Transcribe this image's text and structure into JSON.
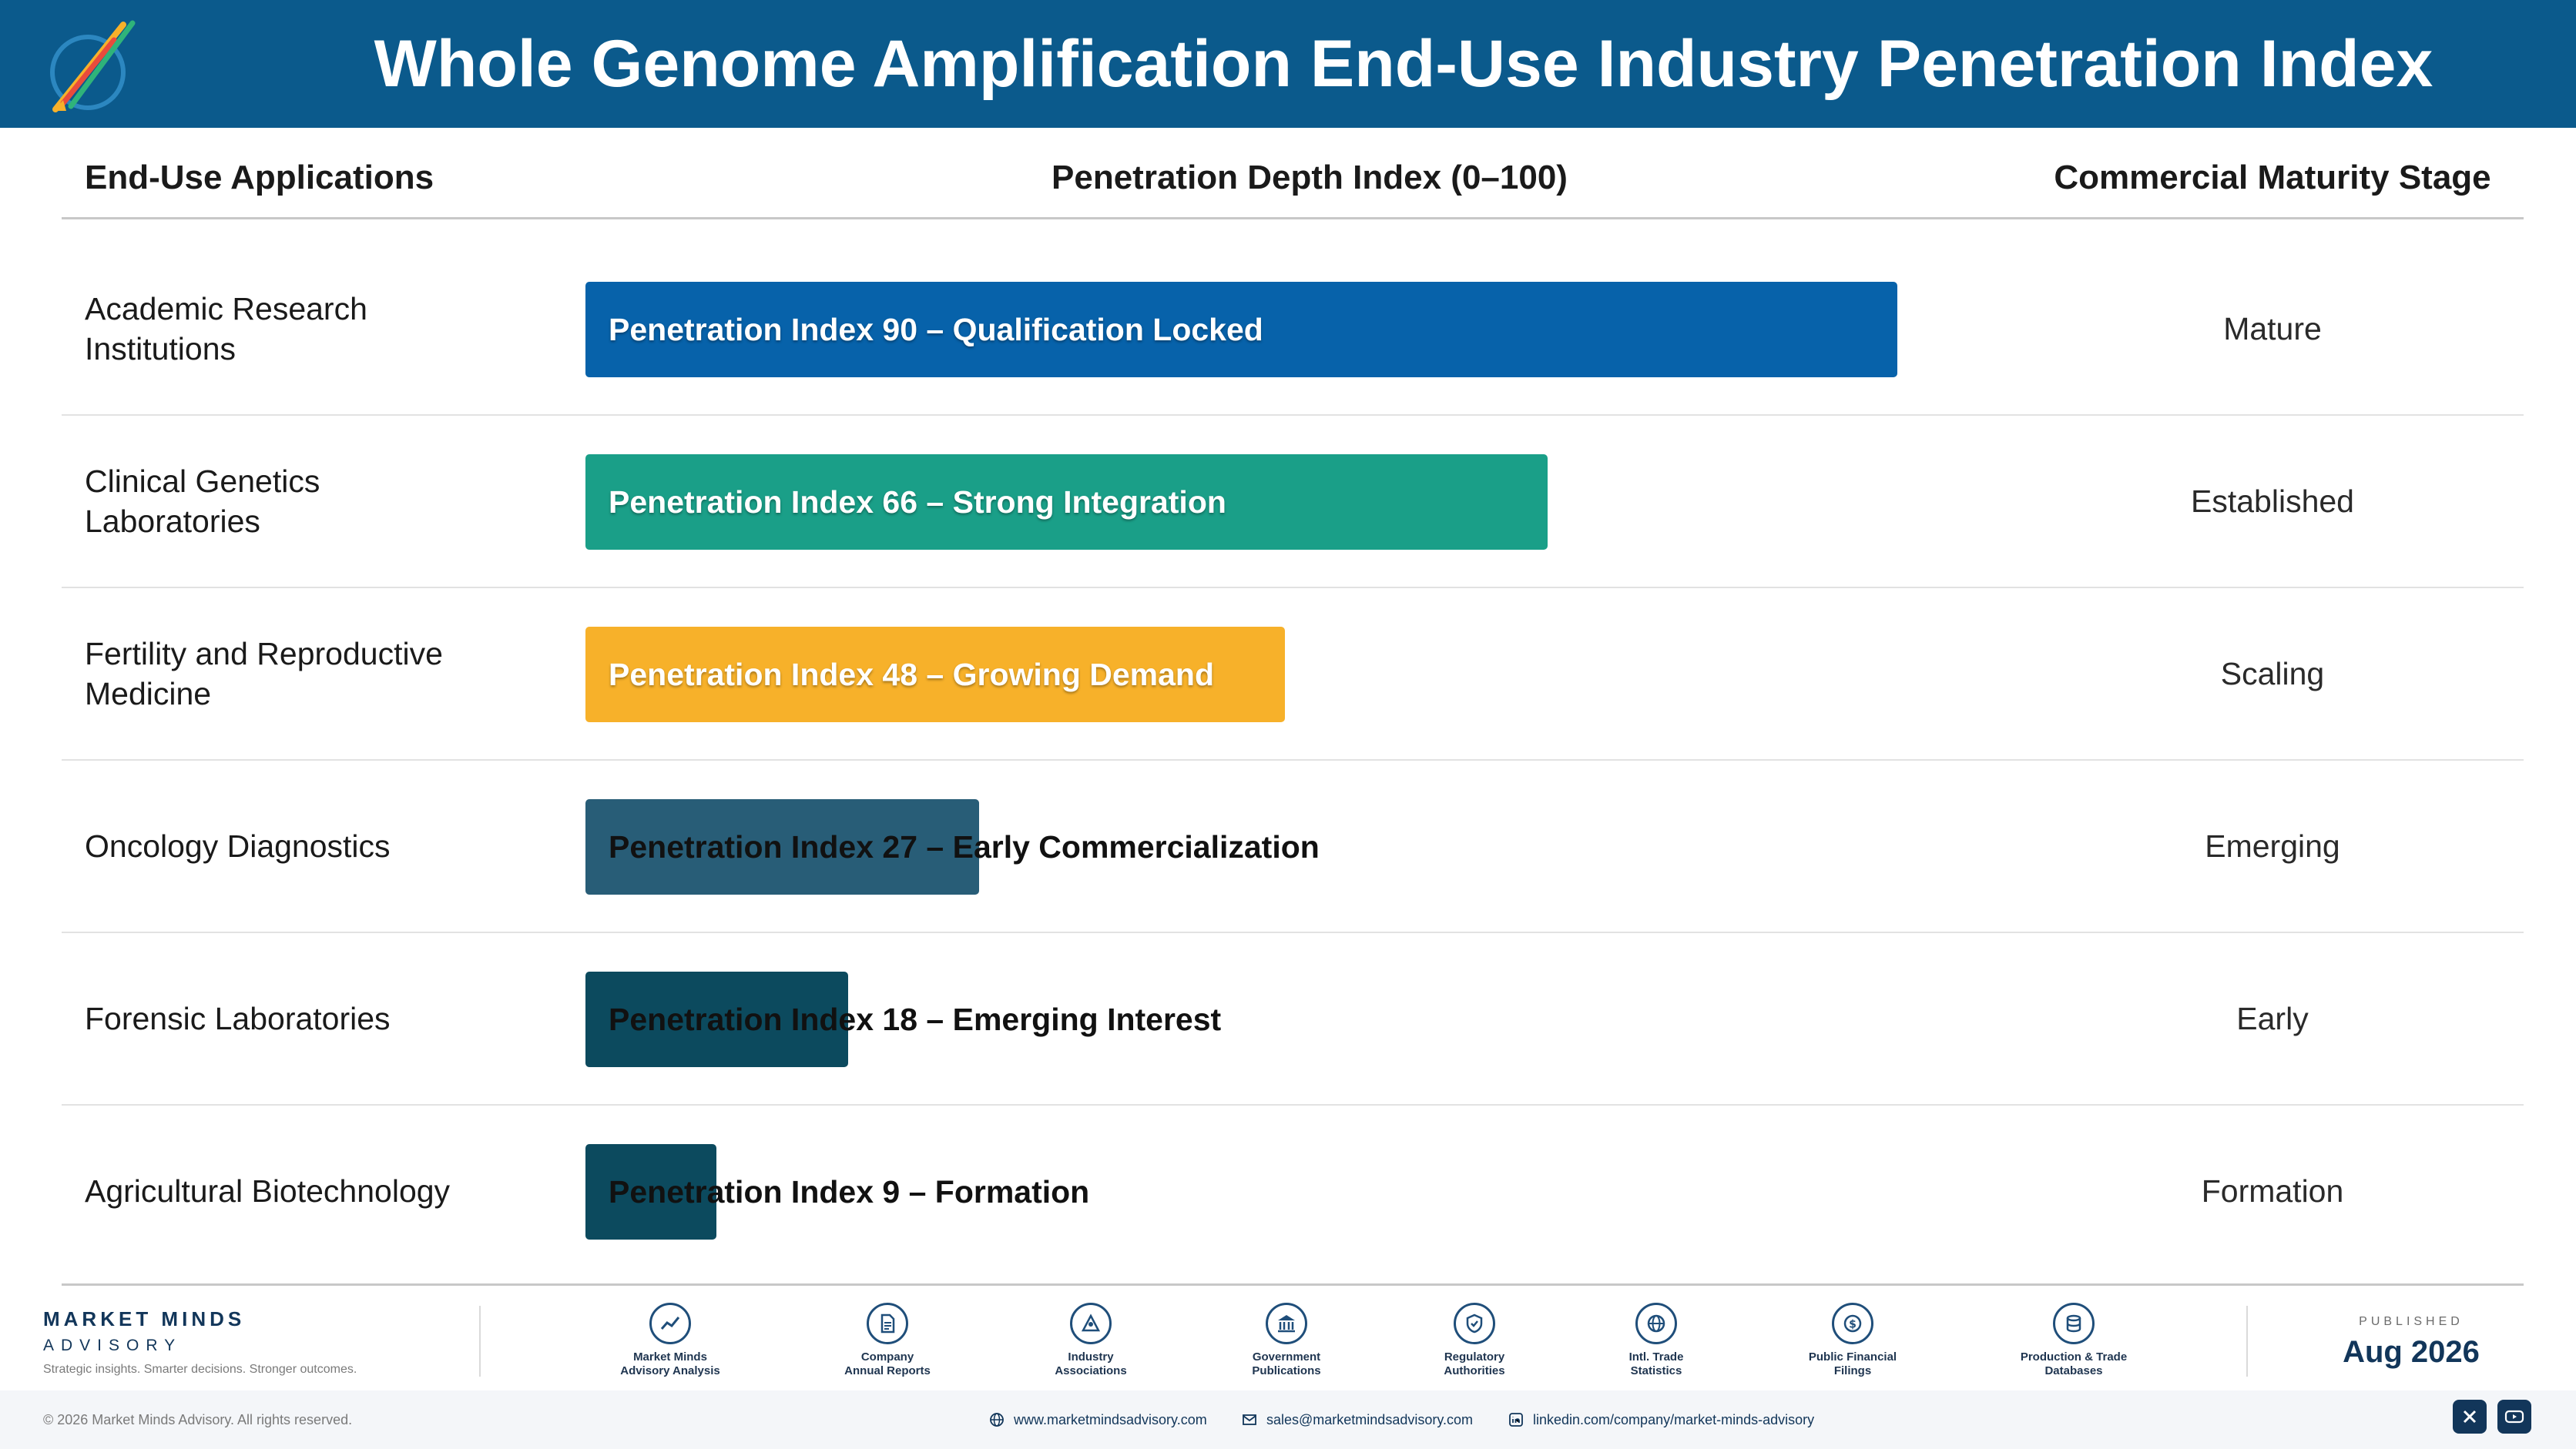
{
  "title": "Whole Genome Amplification End-Use Industry Penetration Index",
  "columns": {
    "applications": "End-Use Applications",
    "index": "Penetration Depth Index (0–100)",
    "stage": "Commercial Maturity Stage"
  },
  "colors": {
    "header_bg": "#0b5a8c",
    "qualification_locked": "#0762aa",
    "strong_integration": "#1a9f88",
    "growing_demand": "#f7b12a",
    "early_commercialization": "#285d77",
    "emerging_interest": "#0c4a5e",
    "formation": "#0c4a5e"
  },
  "chart_data": {
    "type": "bar",
    "orientation": "horizontal",
    "title": "Whole Genome Amplification End-Use Industry Penetration Index",
    "xlabel": "Penetration Depth Index (0–100)",
    "xlim": [
      0,
      100
    ],
    "categories": [
      "Academic Research Institutions",
      "Clinical Genetics Laboratories",
      "Fertility and Reproductive Medicine",
      "Oncology Diagnostics",
      "Forensic Laboratories",
      "Agricultural Biotechnology"
    ],
    "values": [
      90,
      66,
      48,
      27,
      18,
      9
    ],
    "bar_labels": [
      "Penetration Index 90 – Qualification Locked",
      "Penetration Index 66 – Strong Integration",
      "Penetration Index 48 – Growing Demand",
      "Penetration Index 27 – Early Commercialization",
      "Penetration Index 18 – Emerging Interest",
      "Penetration Index 9 – Formation"
    ],
    "stages": [
      "Mature",
      "Established",
      "Scaling",
      "Emerging",
      "Early",
      "Formation"
    ],
    "bar_colors": [
      "#0762aa",
      "#1a9f88",
      "#f7b12a",
      "#285d77",
      "#0c4a5e",
      "#0c4a5e"
    ]
  },
  "rows": [
    {
      "app_line1": "Academic Research",
      "app_line2": "Institutions"
    },
    {
      "app_line1": "Clinical Genetics",
      "app_line2": "Laboratories"
    },
    {
      "app_line1": "Fertility and Reproductive",
      "app_line2": "Medicine"
    },
    {
      "app_line1": "Oncology Diagnostics",
      "app_line2": ""
    },
    {
      "app_line1": "Forensic Laboratories",
      "app_line2": ""
    },
    {
      "app_line1": "Agricultural Biotechnology",
      "app_line2": ""
    }
  ],
  "footer": {
    "brand_name": "MARKET MINDS",
    "brand_sub": "ADVISORY",
    "tagline": "Strategic insights. Smarter decisions. Stronger outcomes.",
    "sources": [
      {
        "line1": "Market Minds",
        "line2": "Advisory Analysis",
        "icon": "chart-line-icon"
      },
      {
        "line1": "Company",
        "line2": "Annual Reports",
        "icon": "document-icon"
      },
      {
        "line1": "Industry",
        "line2": "Associations",
        "icon": "network-icon"
      },
      {
        "line1": "Government",
        "line2": "Publications",
        "icon": "building-icon"
      },
      {
        "line1": "Regulatory",
        "line2": "Authorities",
        "icon": "shield-icon"
      },
      {
        "line1": "Intl. Trade",
        "line2": "Statistics",
        "icon": "globe-icon"
      },
      {
        "line1": "Public Financial",
        "line2": "Filings",
        "icon": "dollar-icon"
      },
      {
        "line1": "Production & Trade",
        "line2": "Databases",
        "icon": "database-icon"
      }
    ],
    "published_label": "PUBLISHED",
    "published_date": "Aug 2026",
    "copyright": "© 2026 Market Minds Advisory. All rights reserved.",
    "website": "www.marketmindsadvisory.com",
    "email": "sales@marketmindsadvisory.com",
    "linkedin": "linkedin.com/company/market-minds-advisory"
  }
}
